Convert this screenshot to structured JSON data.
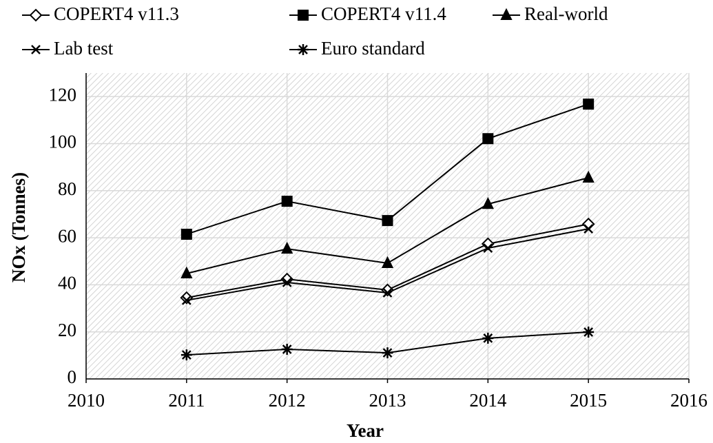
{
  "chart_data": {
    "type": "line",
    "x": [
      2011,
      2012,
      2013,
      2014,
      2015
    ],
    "xlim": [
      2010,
      2016
    ],
    "xticks": [
      2010,
      2011,
      2012,
      2013,
      2014,
      2015,
      2016
    ],
    "ylim": [
      0,
      130
    ],
    "yticks": [
      0,
      20,
      40,
      60,
      80,
      100,
      120
    ],
    "xlabel": "Year",
    "ylabel": "NOx (Tonnes)",
    "grid": true,
    "legend": "top",
    "series": [
      {
        "name": "COPERT4 v11.3",
        "color": "#000000",
        "marker": "diamond-open",
        "values": [
          34.5,
          42.4,
          37.8,
          57.4,
          65.8
        ]
      },
      {
        "name": "COPERT4 v11.4",
        "color": "#000000",
        "marker": "square",
        "values": [
          61.5,
          75.5,
          67.3,
          102.1,
          116.8
        ]
      },
      {
        "name": "Real-world",
        "color": "#000000",
        "marker": "triangle",
        "values": [
          44.8,
          55.3,
          49.2,
          74.3,
          85.5
        ]
      },
      {
        "name": "Lab test",
        "color": "#000000",
        "marker": "x",
        "values": [
          33.4,
          41.0,
          36.6,
          55.6,
          63.8
        ]
      },
      {
        "name": "Euro standard",
        "color": "#000000",
        "marker": "asterisk",
        "values": [
          10.2,
          12.6,
          11.1,
          17.3,
          19.9
        ]
      }
    ]
  }
}
